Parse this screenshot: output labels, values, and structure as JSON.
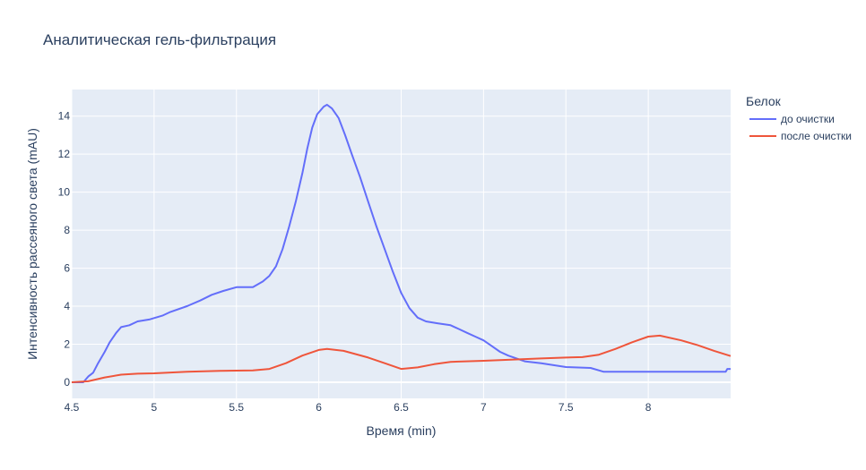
{
  "chart_data": {
    "type": "line",
    "title": "Аналитическая гель-фильтрация",
    "xlabel": "Время (min)",
    "ylabel": "Интенсивность рассеяного света (mAU)",
    "xlim": [
      4.5,
      8.5
    ],
    "ylim": [
      -0.85,
      15.4
    ],
    "x_ticks": [
      4.5,
      5,
      5.5,
      6,
      6.5,
      7,
      7.5,
      8
    ],
    "x_tick_labels": [
      "4.5",
      "5",
      "5.5",
      "6",
      "6.5",
      "7",
      "7.5",
      "8"
    ],
    "y_ticks": [
      0,
      2,
      4,
      6,
      8,
      10,
      12,
      14
    ],
    "y_tick_labels": [
      "0",
      "2",
      "4",
      "6",
      "8",
      "10",
      "12",
      "14"
    ],
    "grid": true,
    "legend": {
      "title": "Белок",
      "position": "right"
    },
    "series": [
      {
        "name": "до очистки",
        "color": "#636efa",
        "points": [
          [
            4.5,
            0.0
          ],
          [
            4.57,
            0.0
          ],
          [
            4.6,
            0.3
          ],
          [
            4.63,
            0.5
          ],
          [
            4.66,
            1.0
          ],
          [
            4.7,
            1.6
          ],
          [
            4.73,
            2.1
          ],
          [
            4.77,
            2.6
          ],
          [
            4.8,
            2.9
          ],
          [
            4.85,
            3.0
          ],
          [
            4.9,
            3.2
          ],
          [
            4.97,
            3.3
          ],
          [
            5.05,
            3.5
          ],
          [
            5.1,
            3.7
          ],
          [
            5.2,
            4.0
          ],
          [
            5.28,
            4.3
          ],
          [
            5.35,
            4.6
          ],
          [
            5.42,
            4.8
          ],
          [
            5.5,
            5.0
          ],
          [
            5.6,
            5.0
          ],
          [
            5.66,
            5.3
          ],
          [
            5.7,
            5.6
          ],
          [
            5.74,
            6.1
          ],
          [
            5.78,
            7.0
          ],
          [
            5.82,
            8.2
          ],
          [
            5.86,
            9.5
          ],
          [
            5.9,
            11.0
          ],
          [
            5.93,
            12.3
          ],
          [
            5.96,
            13.4
          ],
          [
            5.99,
            14.1
          ],
          [
            6.03,
            14.5
          ],
          [
            6.05,
            14.6
          ],
          [
            6.08,
            14.4
          ],
          [
            6.12,
            13.9
          ],
          [
            6.16,
            13.0
          ],
          [
            6.2,
            12.0
          ],
          [
            6.25,
            10.8
          ],
          [
            6.3,
            9.5
          ],
          [
            6.35,
            8.2
          ],
          [
            6.4,
            7.0
          ],
          [
            6.45,
            5.8
          ],
          [
            6.5,
            4.7
          ],
          [
            6.55,
            3.9
          ],
          [
            6.6,
            3.4
          ],
          [
            6.65,
            3.2
          ],
          [
            6.72,
            3.1
          ],
          [
            6.8,
            3.0
          ],
          [
            6.85,
            2.8
          ],
          [
            6.9,
            2.6
          ],
          [
            6.95,
            2.4
          ],
          [
            7.0,
            2.2
          ],
          [
            7.05,
            1.9
          ],
          [
            7.1,
            1.6
          ],
          [
            7.15,
            1.4
          ],
          [
            7.25,
            1.1
          ],
          [
            7.35,
            1.0
          ],
          [
            7.5,
            0.8
          ],
          [
            7.65,
            0.75
          ],
          [
            7.73,
            0.55
          ],
          [
            8.0,
            0.55
          ],
          [
            8.3,
            0.55
          ],
          [
            8.47,
            0.55
          ],
          [
            8.48,
            0.7
          ],
          [
            8.5,
            0.7
          ]
        ]
      },
      {
        "name": "после очистки",
        "color": "#ef553b",
        "points": [
          [
            4.5,
            0.0
          ],
          [
            4.6,
            0.05
          ],
          [
            4.7,
            0.25
          ],
          [
            4.8,
            0.4
          ],
          [
            4.9,
            0.45
          ],
          [
            5.0,
            0.47
          ],
          [
            5.2,
            0.55
          ],
          [
            5.4,
            0.6
          ],
          [
            5.6,
            0.62
          ],
          [
            5.7,
            0.7
          ],
          [
            5.8,
            1.0
          ],
          [
            5.9,
            1.4
          ],
          [
            6.0,
            1.7
          ],
          [
            6.05,
            1.75
          ],
          [
            6.15,
            1.65
          ],
          [
            6.3,
            1.3
          ],
          [
            6.4,
            1.0
          ],
          [
            6.5,
            0.7
          ],
          [
            6.6,
            0.78
          ],
          [
            6.7,
            0.95
          ],
          [
            6.8,
            1.07
          ],
          [
            7.0,
            1.13
          ],
          [
            7.2,
            1.2
          ],
          [
            7.35,
            1.25
          ],
          [
            7.5,
            1.3
          ],
          [
            7.6,
            1.32
          ],
          [
            7.7,
            1.45
          ],
          [
            7.8,
            1.75
          ],
          [
            7.9,
            2.1
          ],
          [
            8.0,
            2.4
          ],
          [
            8.07,
            2.45
          ],
          [
            8.2,
            2.2
          ],
          [
            8.3,
            1.95
          ],
          [
            8.4,
            1.65
          ],
          [
            8.5,
            1.38
          ]
        ]
      }
    ]
  }
}
